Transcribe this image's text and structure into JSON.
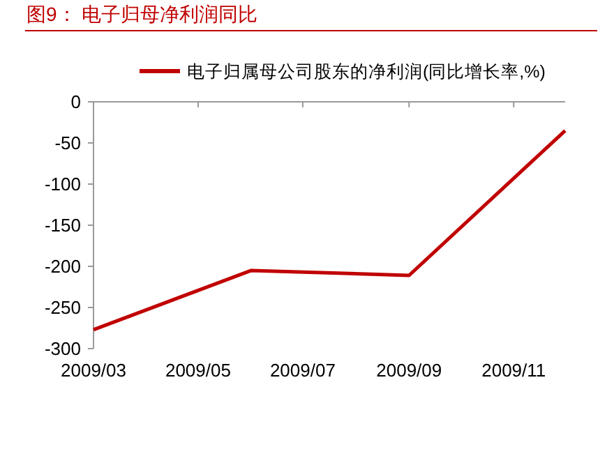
{
  "chart_data": {
    "type": "line",
    "title": "图9：  电子归母净利润同比",
    "x": [
      "2009-03",
      "2009-06",
      "2009-09",
      "2009-12"
    ],
    "series": [
      {
        "name": "电子归属母公司股东的净利润(同比增长率,%)",
        "color": "#c00000",
        "values": [
          -277,
          -205,
          -211,
          -35
        ]
      }
    ],
    "xlim": [
      "2009-03",
      "2009-12"
    ],
    "xticks": [
      {
        "value": "2009-03",
        "label": "2009/03"
      },
      {
        "value": "2009-05",
        "label": "2009/05"
      },
      {
        "value": "2009-07",
        "label": "2009/07"
      },
      {
        "value": "2009-09",
        "label": "2009/09"
      },
      {
        "value": "2009-11",
        "label": "2009/11"
      }
    ],
    "ylim": [
      -300,
      0
    ],
    "yticks": [
      0,
      -50,
      -100,
      -150,
      -200,
      -250,
      -300
    ],
    "grid": false,
    "legend": "top",
    "marker": "none",
    "line_style": "solid"
  }
}
